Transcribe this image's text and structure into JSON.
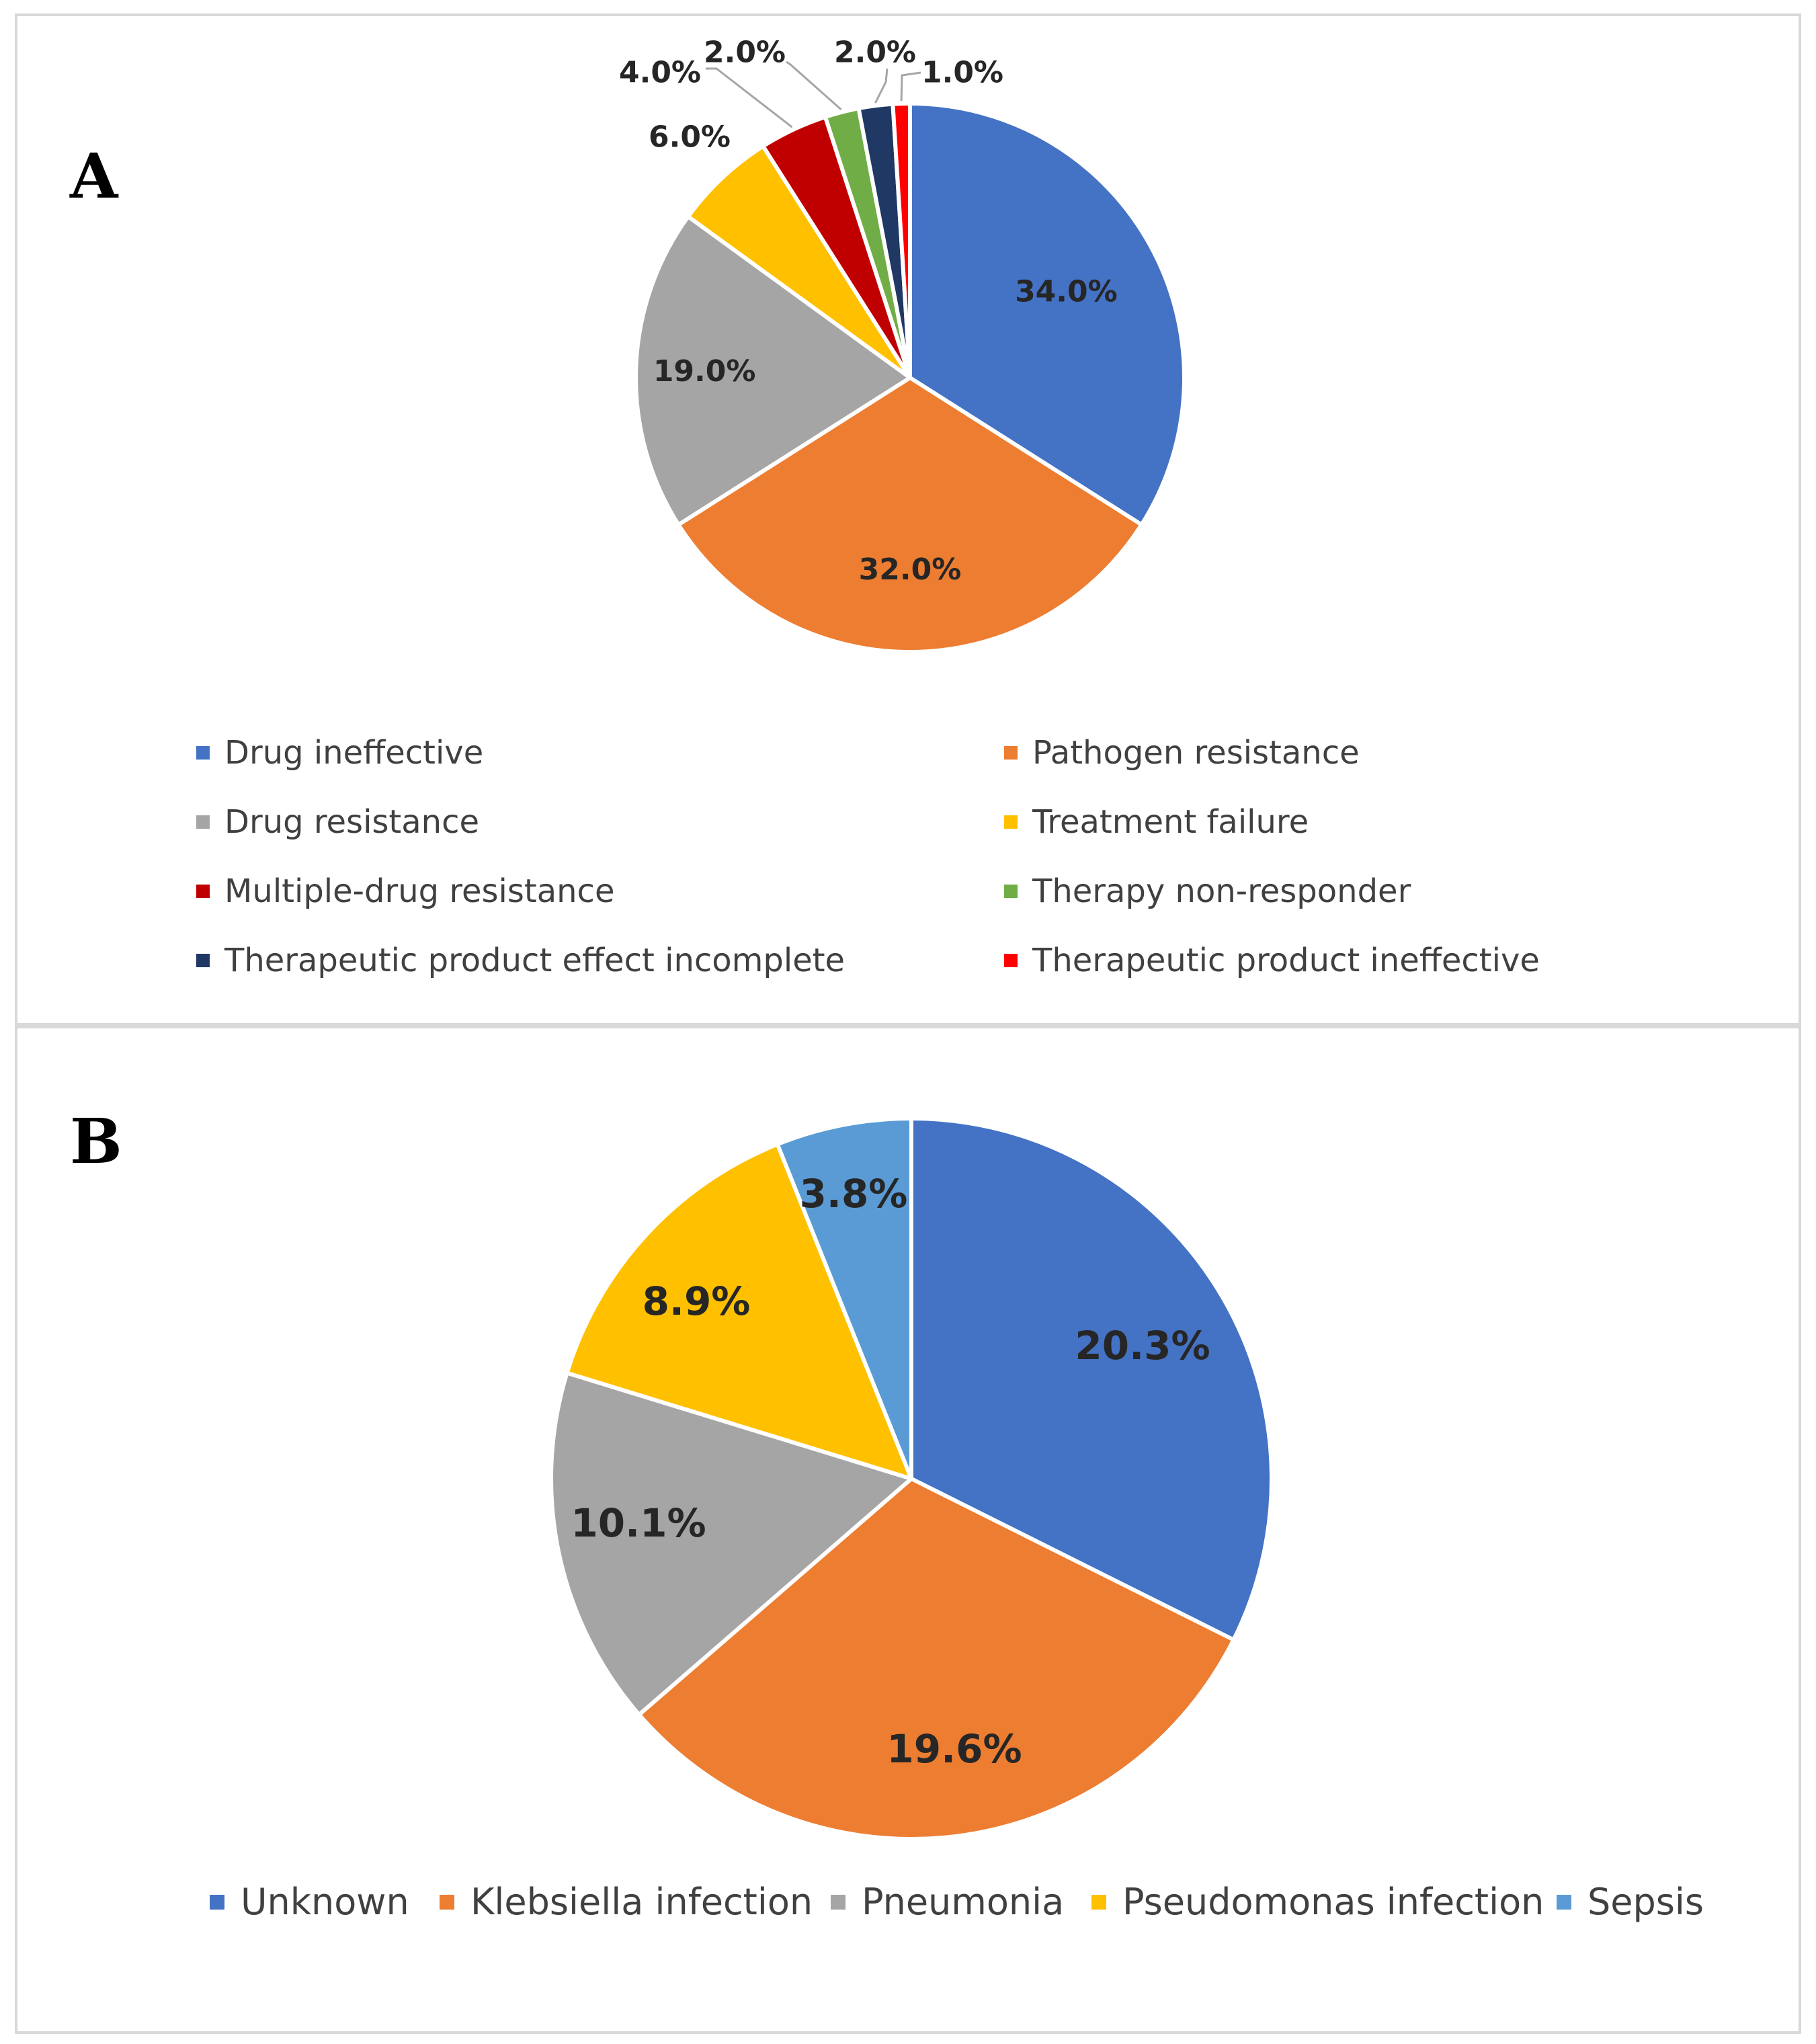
{
  "panel_a": {
    "letter": "A"
  },
  "panel_b": {
    "letter": "B"
  },
  "chart_data": [
    {
      "type": "pie",
      "panel": "A",
      "labels": [
        "Drug ineffective",
        "Pathogen resistance",
        "Drug resistance",
        "Treatment failure",
        "Multiple-drug resistance",
        "Therapy non-responder",
        "Therapeutic product effect incomplete",
        "Therapeutic product ineffective"
      ],
      "values": [
        34.0,
        32.0,
        19.0,
        6.0,
        4.0,
        2.0,
        2.0,
        1.0
      ],
      "data_labels": [
        "34.0%",
        "32.0%",
        "19.0%",
        "6.0%",
        "4.0%",
        "2.0%",
        "2.0%",
        "1.0%"
      ],
      "colors": [
        "#4472C4",
        "#ED7D31",
        "#A5A5A5",
        "#FFC000",
        "#C00000",
        "#70AD47",
        "#1F3864",
        "#FF0000"
      ],
      "legend_position": "bottom"
    },
    {
      "type": "pie",
      "panel": "B",
      "labels": [
        "Unknown",
        "Klebsiella infection",
        "Pneumonia",
        "Pseudomonas infection",
        "Sepsis"
      ],
      "values": [
        20.3,
        19.6,
        10.1,
        8.9,
        3.8
      ],
      "data_labels": [
        "20.3%",
        "19.6%",
        "10.1%",
        "8.9%",
        "3.8%"
      ],
      "colors": [
        "#4472C4",
        "#ED7D31",
        "#A5A5A5",
        "#FFC000",
        "#5B9BD5"
      ],
      "legend_position": "bottom"
    }
  ]
}
